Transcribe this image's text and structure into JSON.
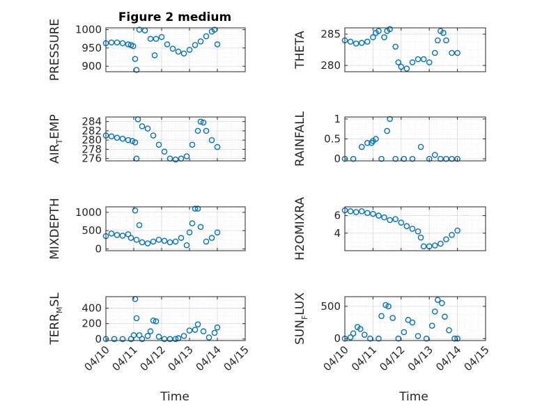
{
  "figure": {
    "title": "Figure 2 medium",
    "marker_color": "#0072BD",
    "axis_color": "#262626",
    "grid_color": "#e6e6e6"
  },
  "chart_data": [
    {
      "type": "scatter",
      "ylabel": "PRESSURE",
      "yticks": [
        900,
        950,
        1000
      ],
      "ylim": [
        885,
        1005
      ],
      "xlim": [
        0,
        5
      ],
      "x": [
        0.0,
        0.2,
        0.4,
        0.6,
        0.8,
        0.9,
        0.98,
        1.05,
        1.1,
        1.2,
        1.4,
        1.6,
        1.75,
        1.8,
        2.0,
        2.2,
        2.4,
        2.6,
        2.8,
        3.0,
        3.2,
        3.4,
        3.6,
        3.8,
        3.9,
        4.0
      ],
      "y": [
        963,
        965,
        965,
        963,
        960,
        958,
        955,
        920,
        890,
        1000,
        998,
        975,
        930,
        975,
        980,
        960,
        948,
        940,
        935,
        945,
        958,
        968,
        982,
        995,
        1000,
        960
      ]
    },
    {
      "type": "scatter",
      "ylabel": "THETA",
      "yticks": [
        280,
        285
      ],
      "ylim": [
        279,
        286
      ],
      "xlim": [
        0,
        5
      ],
      "x": [
        0.0,
        0.2,
        0.4,
        0.6,
        0.8,
        1.0,
        1.1,
        1.2,
        1.4,
        1.5,
        1.6,
        1.8,
        1.9,
        2.0,
        2.2,
        2.4,
        2.6,
        2.8,
        3.0,
        3.2,
        3.3,
        3.4,
        3.5,
        3.6,
        3.8,
        4.0
      ],
      "y": [
        284,
        283.8,
        283.5,
        283.6,
        283.8,
        284.5,
        285.2,
        285.5,
        284.5,
        285.5,
        285.8,
        283,
        280.5,
        279.8,
        279.5,
        280.5,
        281,
        281,
        280.5,
        282,
        284,
        285.5,
        285.2,
        284,
        282,
        282
      ]
    },
    {
      "type": "scatter",
      "ylabel": "AIR_TEMP",
      "yticks": [
        276,
        278,
        280,
        282,
        284
      ],
      "ylim": [
        275.5,
        285
      ],
      "xlim": [
        0,
        5
      ],
      "x": [
        0.0,
        0.2,
        0.4,
        0.6,
        0.8,
        0.95,
        1.05,
        1.1,
        1.15,
        1.3,
        1.5,
        1.7,
        1.9,
        2.1,
        2.3,
        2.5,
        2.7,
        2.9,
        3.1,
        3.3,
        3.4,
        3.5,
        3.6,
        3.8,
        4.0
      ],
      "y": [
        281,
        280.8,
        280.5,
        280.3,
        280,
        279.8,
        279.5,
        276,
        284.5,
        283,
        282.5,
        281,
        279,
        277.5,
        276,
        275.8,
        276,
        276.5,
        279,
        282,
        284,
        283.8,
        282,
        280,
        278.5
      ]
    },
    {
      "type": "scatter",
      "ylabel": "RAINFALL",
      "yticks": [
        0,
        0.5,
        1
      ],
      "ylim": [
        -0.05,
        1.05
      ],
      "xlim": [
        0,
        5
      ],
      "x": [
        0.0,
        0.3,
        0.6,
        0.8,
        0.95,
        1.0,
        1.1,
        1.3,
        1.5,
        1.6,
        1.8,
        2.1,
        2.4,
        2.7,
        3.0,
        3.2,
        3.4,
        3.6,
        3.8,
        4.0
      ],
      "y": [
        0,
        0,
        0.3,
        0.4,
        0.4,
        0.45,
        0.5,
        0,
        0.7,
        1.0,
        0,
        0,
        0,
        0.3,
        0,
        0.1,
        0,
        0,
        0,
        0
      ]
    },
    {
      "type": "scatter",
      "ylabel": "MIXDEPTH",
      "yticks": [
        0,
        500,
        1000
      ],
      "ylim": [
        -50,
        1150
      ],
      "xlim": [
        0,
        5
      ],
      "x": [
        0.0,
        0.2,
        0.4,
        0.6,
        0.8,
        0.9,
        1.05,
        1.1,
        1.2,
        1.3,
        1.5,
        1.7,
        1.9,
        2.1,
        2.3,
        2.5,
        2.7,
        2.9,
        3.0,
        3.1,
        3.2,
        3.3,
        3.4,
        3.6,
        3.8,
        4.0
      ],
      "y": [
        350,
        420,
        380,
        360,
        400,
        300,
        1050,
        250,
        650,
        180,
        150,
        200,
        250,
        220,
        180,
        200,
        300,
        100,
        450,
        700,
        1100,
        1100,
        600,
        200,
        300,
        450
      ]
    },
    {
      "type": "scatter",
      "ylabel": "H2OMIXRA",
      "yticks": [
        4,
        6
      ],
      "ylim": [
        2,
        7
      ],
      "xlim": [
        0,
        5
      ],
      "x": [
        0.0,
        0.2,
        0.4,
        0.6,
        0.8,
        1.0,
        1.2,
        1.4,
        1.6,
        1.8,
        2.0,
        2.2,
        2.4,
        2.6,
        2.7,
        2.8,
        3.0,
        3.2,
        3.4,
        3.6,
        3.8,
        4.0
      ],
      "y": [
        6.6,
        6.5,
        6.4,
        6.5,
        6.3,
        6.2,
        6.0,
        5.8,
        5.5,
        5.6,
        5.2,
        4.8,
        4.5,
        4.2,
        3.5,
        2.5,
        2.5,
        2.6,
        2.8,
        3.3,
        3.8,
        4.3
      ]
    },
    {
      "type": "scatter",
      "ylabel": "TERR_MSL",
      "yticks": [
        0,
        200,
        400
      ],
      "ylim": [
        -20,
        550
      ],
      "xlim": [
        0,
        5
      ],
      "x": [
        0.0,
        0.3,
        0.6,
        0.9,
        1.0,
        1.05,
        1.1,
        1.2,
        1.3,
        1.5,
        1.6,
        1.7,
        1.8,
        1.9,
        2.1,
        2.3,
        2.5,
        2.6,
        2.8,
        3.0,
        3.2,
        3.3,
        3.5,
        3.7,
        3.9,
        4.0
      ],
      "y": [
        0,
        0,
        0,
        0,
        50,
        520,
        270,
        50,
        0,
        40,
        100,
        240,
        230,
        30,
        0,
        0,
        0,
        10,
        40,
        110,
        120,
        190,
        100,
        20,
        80,
        150
      ]
    },
    {
      "type": "scatter",
      "ylabel": "SUN_FLUX",
      "yticks": [
        0,
        500
      ],
      "ylim": [
        -30,
        650
      ],
      "xlim": [
        0,
        5
      ],
      "x": [
        0.0,
        0.2,
        0.3,
        0.45,
        0.55,
        0.7,
        0.9,
        1.2,
        1.3,
        1.45,
        1.55,
        1.7,
        1.9,
        2.1,
        2.25,
        2.4,
        2.6,
        2.9,
        3.1,
        3.2,
        3.3,
        3.45,
        3.55,
        3.7,
        3.9,
        4.0
      ],
      "y": [
        0,
        20,
        80,
        180,
        150,
        60,
        0,
        0,
        350,
        520,
        500,
        320,
        0,
        100,
        290,
        250,
        40,
        0,
        200,
        420,
        600,
        550,
        340,
        130,
        0,
        0
      ]
    }
  ],
  "x_axis": {
    "ticklabels": [
      "04/10",
      "04/11",
      "04/12",
      "04/13",
      "04/14",
      "04/15"
    ],
    "label_left": "Time",
    "label_right": "Time"
  }
}
